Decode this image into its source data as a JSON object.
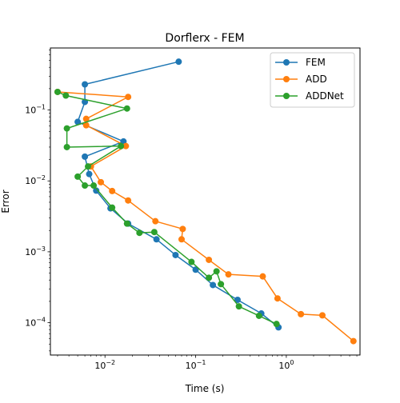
{
  "chart_data": {
    "type": "line",
    "title": "Dorflerx - FEM",
    "xlabel": "Time (s)",
    "ylabel": "Error",
    "xscale": "log",
    "yscale": "log",
    "xlim": [
      0.0025,
      6.5
    ],
    "ylim": [
      3.5e-05,
      0.75
    ],
    "grid": false,
    "legend_position": "top-right",
    "x_ticks": [
      {
        "value": 0.01,
        "base": "10",
        "exp": "−2"
      },
      {
        "value": 0.1,
        "base": "10",
        "exp": "−1"
      },
      {
        "value": 1,
        "base": "10",
        "exp": "0"
      }
    ],
    "y_ticks": [
      {
        "value": 0.0001,
        "base": "10",
        "exp": "−4"
      },
      {
        "value": 0.001,
        "base": "10",
        "exp": "−3"
      },
      {
        "value": 0.01,
        "base": "10",
        "exp": "−2"
      },
      {
        "value": 0.1,
        "base": "10",
        "exp": "−1"
      }
    ],
    "series": [
      {
        "name": "FEM",
        "color": "#1f77b4",
        "points": [
          [
            0.065,
            0.48
          ],
          [
            0.006,
            0.23
          ],
          [
            0.006,
            0.13
          ],
          [
            0.005,
            0.068
          ],
          [
            0.016,
            0.036
          ],
          [
            0.006,
            0.022
          ],
          [
            0.0067,
            0.0125
          ],
          [
            0.008,
            0.0073
          ],
          [
            0.0115,
            0.0041
          ],
          [
            0.018,
            0.0025
          ],
          [
            0.037,
            0.0015
          ],
          [
            0.06,
            0.0009
          ],
          [
            0.1,
            0.00056
          ],
          [
            0.155,
            0.00034
          ],
          [
            0.29,
            0.00021
          ],
          [
            0.53,
            0.000135
          ],
          [
            0.82,
            8.6e-05
          ]
        ]
      },
      {
        "name": "ADD",
        "color": "#ff7f0e",
        "points": [
          [
            0.003,
            0.18
          ],
          [
            0.018,
            0.153
          ],
          [
            0.0062,
            0.075
          ],
          [
            0.0062,
            0.061
          ],
          [
            0.017,
            0.031
          ],
          [
            0.007,
            0.016
          ],
          [
            0.009,
            0.0096
          ],
          [
            0.012,
            0.0072
          ],
          [
            0.018,
            0.0053
          ],
          [
            0.036,
            0.0027
          ],
          [
            0.072,
            0.0021
          ],
          [
            0.07,
            0.0015
          ],
          [
            0.14,
            0.00077
          ],
          [
            0.23,
            0.00048
          ],
          [
            0.55,
            0.00045
          ],
          [
            0.8,
            0.00022
          ],
          [
            1.45,
            0.000132
          ],
          [
            2.5,
            0.000127
          ],
          [
            5.5,
            5.5e-05
          ]
        ]
      },
      {
        "name": "ADDNet",
        "color": "#2ca02c",
        "points": [
          [
            0.003,
            0.18
          ],
          [
            0.0037,
            0.16
          ],
          [
            0.0175,
            0.105
          ],
          [
            0.0038,
            0.055
          ],
          [
            0.0038,
            0.03
          ],
          [
            0.015,
            0.031
          ],
          [
            0.0065,
            0.016
          ],
          [
            0.005,
            0.0115
          ],
          [
            0.006,
            0.0086
          ],
          [
            0.0075,
            0.0086
          ],
          [
            0.012,
            0.0042
          ],
          [
            0.0175,
            0.0025
          ],
          [
            0.024,
            0.00185
          ],
          [
            0.035,
            0.0019
          ],
          [
            0.09,
            0.00072
          ],
          [
            0.14,
            0.00043
          ],
          [
            0.17,
            0.00053
          ],
          [
            0.19,
            0.00035
          ],
          [
            0.3,
            0.00017
          ],
          [
            0.5,
            0.000125
          ],
          [
            0.78,
            9.6e-05
          ]
        ]
      }
    ]
  }
}
